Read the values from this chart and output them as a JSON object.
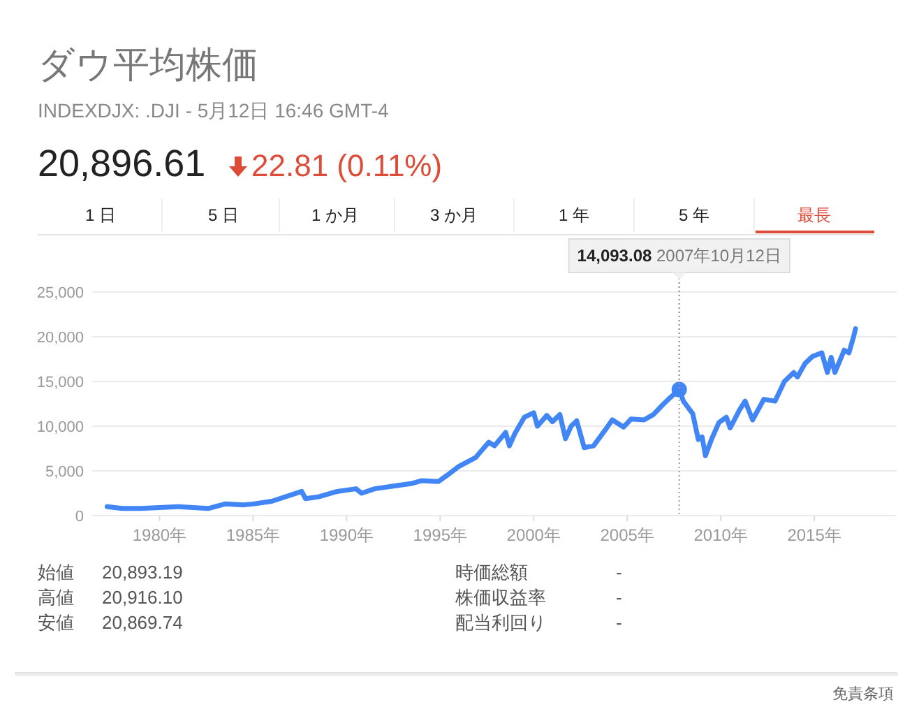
{
  "chart_data": {
    "type": "line",
    "title": "ダウ平均株価",
    "subtitle": "INDEXDJX: .DJI - 5月12日 16:46 GMT-4",
    "x": [
      1977.2,
      1978,
      1979,
      1980,
      1981,
      1982.6,
      1983.5,
      1984.5,
      1985,
      1986,
      1987.6,
      1987.8,
      1988.5,
      1989.5,
      1990.5,
      1990.8,
      1991.5,
      1992.5,
      1993.5,
      1994,
      1994.9,
      1995.5,
      1996,
      1996.9,
      1997.6,
      1997.9,
      1998.5,
      1998.7,
      1999,
      1999.5,
      2000,
      2000.2,
      2000.7,
      2001,
      2001.4,
      2001.7,
      2002,
      2002.3,
      2002.7,
      2003.2,
      2003.9,
      2004.2,
      2004.8,
      2005.2,
      2005.9,
      2006.4,
      2006.9,
      2007.3,
      2007.78,
      2008,
      2008.5,
      2008.8,
      2009,
      2009.18,
      2009.5,
      2009.9,
      2010.3,
      2010.5,
      2011,
      2011.3,
      2011.7,
      2012.3,
      2012.9,
      2013.4,
      2013.9,
      2014.1,
      2014.5,
      2014.9,
      2015.4,
      2015.7,
      2015.9,
      2016.1,
      2016.6,
      2016.85,
      2017.1,
      2017.2
    ],
    "series": [
      {
        "color": "#4285f4",
        "values": [
          1000,
          800,
          800,
          900,
          1000,
          800,
          1300,
          1200,
          1300,
          1600,
          2700,
          1900,
          2100,
          2700,
          3000,
          2500,
          3000,
          3300,
          3600,
          3900,
          3800,
          4700,
          5500,
          6500,
          8200,
          7800,
          9300,
          7800,
          9200,
          11000,
          11500,
          10000,
          11200,
          10500,
          11300,
          8600,
          10000,
          10600,
          7600,
          7800,
          9800,
          10700,
          9900,
          10800,
          10700,
          11300,
          12400,
          13200,
          14100,
          12800,
          11400,
          8500,
          8800,
          6700,
          8500,
          10400,
          11000,
          9800,
          11800,
          12800,
          10700,
          13000,
          12800,
          15000,
          16000,
          15500,
          17000,
          17800,
          18200,
          16000,
          17700,
          16000,
          18500,
          18200,
          20000,
          20900
        ]
      },
      {
        "type": "scatter",
        "x": [
          2007.78
        ],
        "color": "#4285f4",
        "marker": "circle",
        "values": [
          14093.08
        ]
      }
    ],
    "xlim": [
      1976.4,
      2019.4
    ],
    "xticks": [
      {
        "value": 1980,
        "label": "1980年"
      },
      {
        "value": 1985,
        "label": "1985年"
      },
      {
        "value": 1990,
        "label": "1990年"
      },
      {
        "value": 1995,
        "label": "1995年"
      },
      {
        "value": 2000,
        "label": "2000年"
      },
      {
        "value": 2005,
        "label": "2005年"
      },
      {
        "value": 2010,
        "label": "2010年"
      },
      {
        "value": 2015,
        "label": "2015年"
      }
    ],
    "ylim": [
      0,
      25000
    ],
    "yticks": [
      0,
      {
        "value": 5000,
        "label": "5,000"
      },
      {
        "value": 10000,
        "label": "10,000"
      },
      {
        "value": 15000,
        "label": "15,000"
      },
      {
        "value": 20000,
        "label": "20,000"
      },
      {
        "value": 25000,
        "label": "25,000"
      }
    ],
    "grid": "y",
    "marker": "none",
    "line_style": "solid",
    "ref_lines": [
      {
        "axis": "x",
        "value": 2007.78,
        "line_style": "dotted",
        "color": "#999999"
      }
    ],
    "annotations": [
      "14,093.08 2007年10月12日",
      "20,896.61",
      "22.81 (0.11%)",
      "1 日",
      "5 日",
      "1 か月",
      "3 か月",
      "1 年",
      "5 年",
      "最長",
      "始値",
      "20,893.19",
      "高値",
      "20,916.10",
      "安値",
      "20,869.74",
      "時価総額",
      "-",
      "株価収益率",
      "-",
      "配当利回り",
      "-",
      "免責条項"
    ]
  }
}
